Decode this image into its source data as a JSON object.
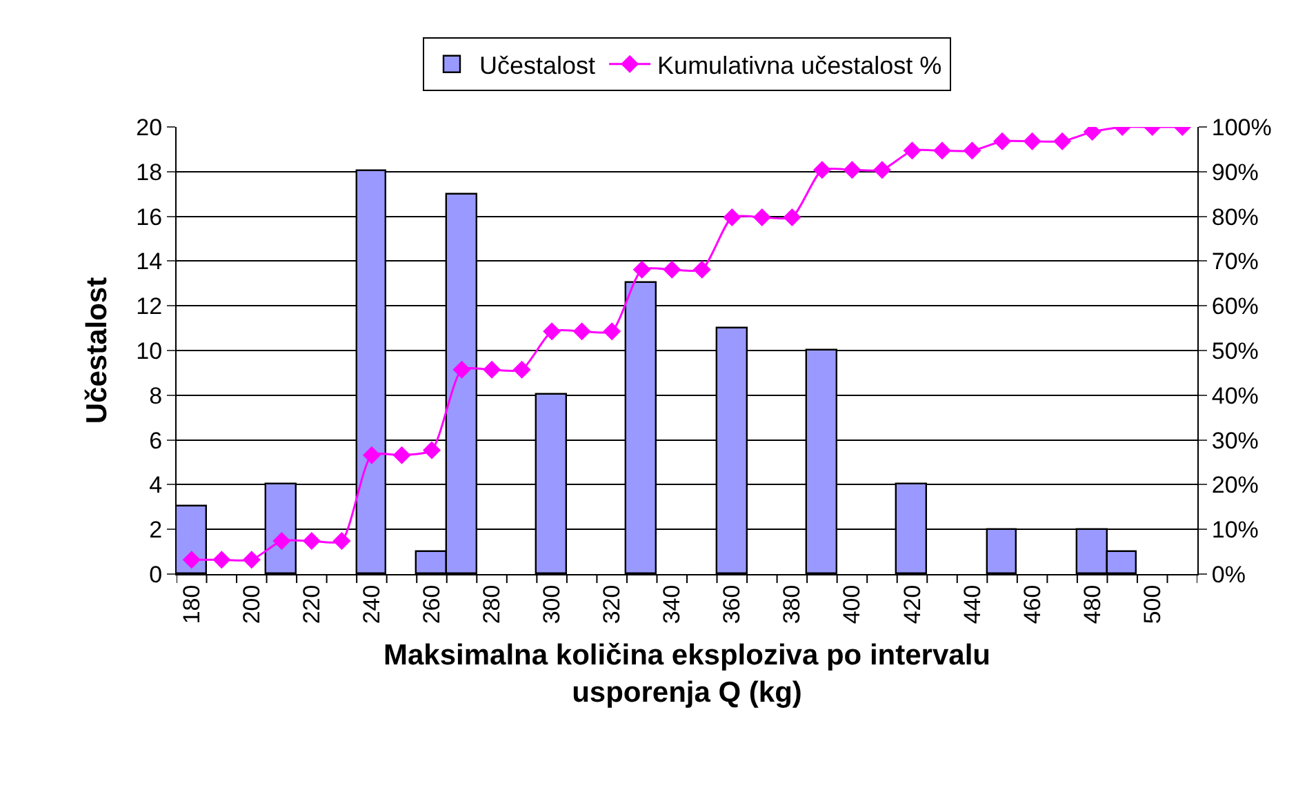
{
  "chart_data": {
    "type": "bar",
    "xlabel": "Maksimalna količina eksploziva po intervalu\nusporenja Q (kg)",
    "ylabel": "Učestalost",
    "categories": [
      "180",
      null,
      "200",
      null,
      "220",
      null,
      "240",
      null,
      "260",
      null,
      "280",
      null,
      "300",
      null,
      "320",
      null,
      "340",
      null,
      "360",
      null,
      "380",
      null,
      "400",
      null,
      "420",
      null,
      "440",
      null,
      "460",
      null,
      "480",
      null,
      "500",
      null
    ],
    "series": [
      {
        "name": "Učestalost",
        "color": "#9999ff",
        "values": [
          3,
          null,
          null,
          4,
          null,
          null,
          18,
          null,
          1,
          17,
          null,
          null,
          8,
          null,
          null,
          13,
          null,
          null,
          11,
          null,
          null,
          10,
          null,
          null,
          4,
          null,
          null,
          2,
          null,
          null,
          2,
          1,
          null,
          null
        ]
      },
      {
        "name": "Kumulativna učestalost %",
        "type": "line",
        "axis": "y2",
        "color": "#ff00ff",
        "marker": "diamond",
        "values": [
          3.2,
          3.2,
          3.2,
          7.4,
          7.4,
          7.4,
          26.6,
          26.6,
          27.7,
          45.7,
          45.7,
          45.7,
          54.3,
          54.3,
          54.3,
          68.1,
          68.1,
          68.1,
          79.8,
          79.8,
          79.8,
          90.4,
          90.4,
          90.4,
          94.7,
          94.7,
          94.7,
          96.8,
          96.8,
          96.8,
          98.9,
          100,
          100,
          100
        ]
      }
    ],
    "ylim": [
      0,
      20
    ],
    "yticks": [
      0,
      2,
      4,
      6,
      8,
      10,
      12,
      14,
      16,
      18,
      20
    ],
    "y2lim": [
      0,
      100
    ],
    "y2ticks": [
      {
        "value": 0,
        "label": "0%"
      },
      {
        "value": 10,
        "label": "10%"
      },
      {
        "value": 20,
        "label": "20%"
      },
      {
        "value": 30,
        "label": "30%"
      },
      {
        "value": 40,
        "label": "40%"
      },
      {
        "value": 50,
        "label": "50%"
      },
      {
        "value": 60,
        "label": "60%"
      },
      {
        "value": 70,
        "label": "70%"
      },
      {
        "value": 80,
        "label": "80%"
      },
      {
        "value": 90,
        "label": "90%"
      },
      {
        "value": 100,
        "label": "100%"
      }
    ],
    "grid": "y",
    "legend": "top"
  }
}
